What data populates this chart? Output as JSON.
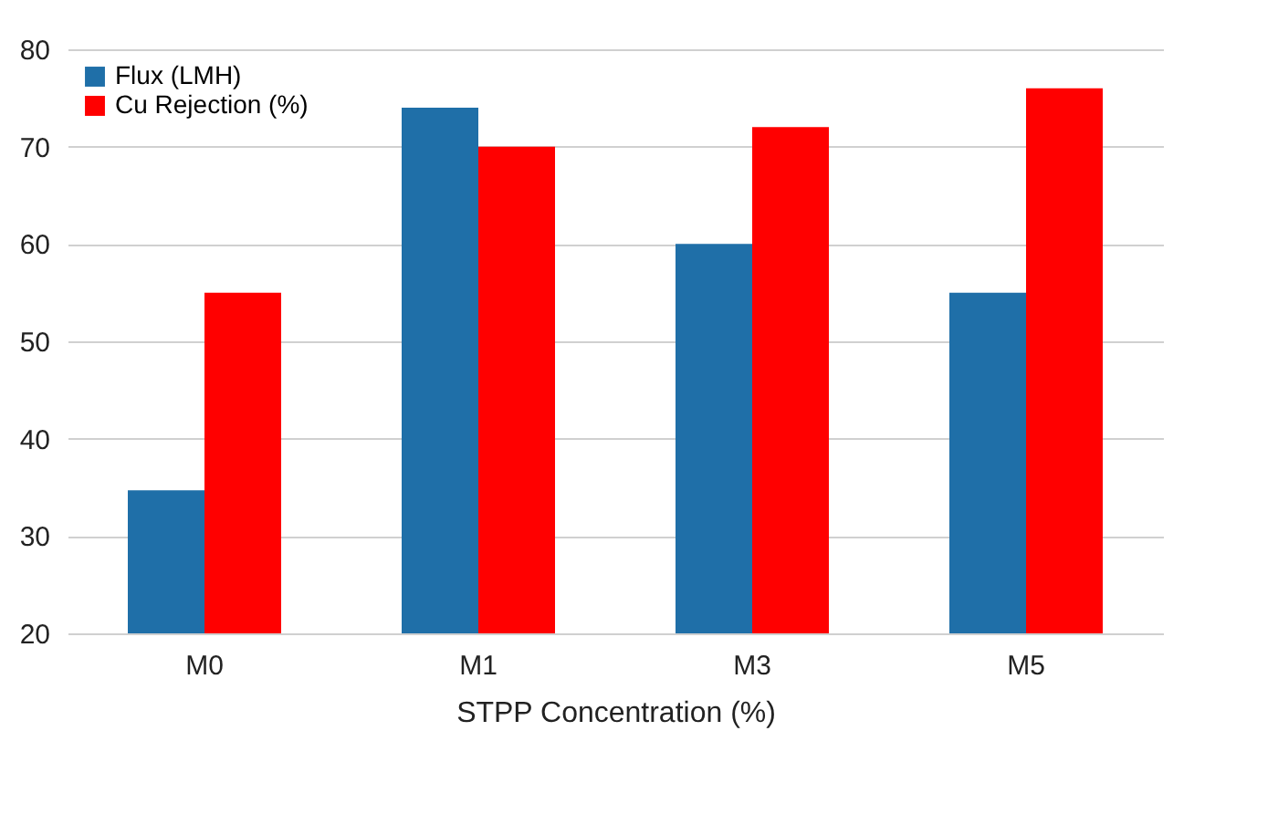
{
  "chart_data": {
    "type": "bar",
    "xlabel": "STPP Concentration (%)",
    "categories": [
      "M0",
      "M1",
      "M3",
      "M5"
    ],
    "series": [
      {
        "name": "Flux (LMH)",
        "color": "#1f6fa8",
        "values": [
          34.7,
          74,
          60,
          55
        ]
      },
      {
        "name": "Cu Rejection (%)",
        "color": "#ff0000",
        "values": [
          55,
          70,
          72,
          76
        ]
      }
    ],
    "ylim": [
      20,
      80
    ],
    "yticks": [
      20,
      30,
      40,
      50,
      60,
      70,
      80
    ],
    "grid": "y",
    "legend": "top left"
  }
}
